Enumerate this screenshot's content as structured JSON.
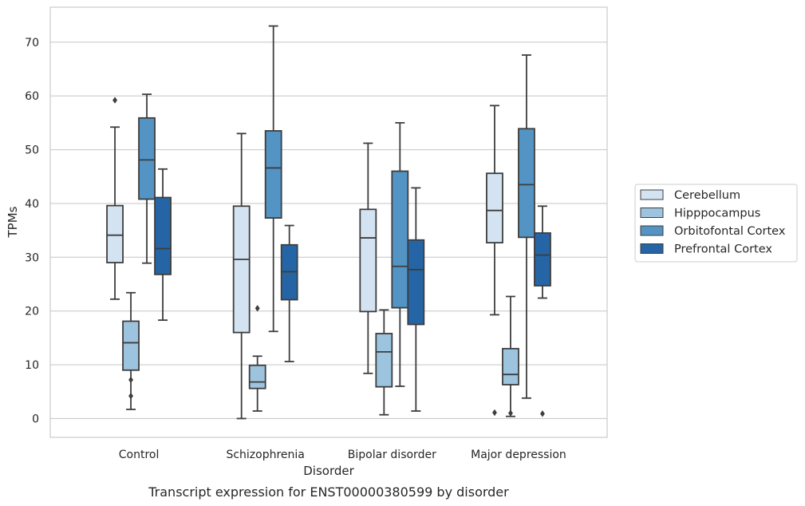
{
  "chart_data": {
    "type": "box",
    "xlabel": "Disorder",
    "ylabel": "TPMs",
    "caption": "Transcript expression for ENST00000380599 by disorder",
    "ylim": [
      -3.5,
      76.5
    ],
    "yticks": [
      0,
      10,
      20,
      30,
      40,
      50,
      60,
      70
    ],
    "grid": "horizontal",
    "legend_position": "right",
    "categories": [
      "Control",
      "Schizophrenia",
      "Bipolar disorder",
      "Major depression"
    ],
    "series": [
      {
        "name": "Cerebellum",
        "color": "#d4e3f2",
        "boxes": [
          {
            "whisker_low": 22.2,
            "q1": 29.0,
            "median": 34.1,
            "q3": 39.6,
            "whisker_high": 54.2,
            "outliers": [
              59.2
            ]
          },
          {
            "whisker_low": 0.0,
            "q1": 16.0,
            "median": 29.6,
            "q3": 39.5,
            "whisker_high": 53.0,
            "outliers": []
          },
          {
            "whisker_low": 8.4,
            "q1": 19.9,
            "median": 33.6,
            "q3": 38.9,
            "whisker_high": 51.2,
            "outliers": []
          },
          {
            "whisker_low": 19.3,
            "q1": 32.7,
            "median": 38.7,
            "q3": 45.6,
            "whisker_high": 58.2,
            "outliers": [
              1.1
            ]
          }
        ]
      },
      {
        "name": "Hipppocampus",
        "color": "#9dc4de",
        "boxes": [
          {
            "whisker_low": 1.7,
            "q1": 9.0,
            "median": 14.1,
            "q3": 18.1,
            "whisker_high": 23.4,
            "outliers": [
              7.2,
              4.2
            ]
          },
          {
            "whisker_low": 1.4,
            "q1": 5.6,
            "median": 6.8,
            "q3": 9.9,
            "whisker_high": 11.6,
            "outliers": [
              20.5
            ]
          },
          {
            "whisker_low": 0.7,
            "q1": 5.9,
            "median": 12.4,
            "q3": 15.8,
            "whisker_high": 20.2,
            "outliers": []
          },
          {
            "whisker_low": 0.4,
            "q1": 6.3,
            "median": 8.2,
            "q3": 13.0,
            "whisker_high": 22.7,
            "outliers": [
              1.0
            ]
          }
        ]
      },
      {
        "name": "Orbitofontal Cortex",
        "color": "#5394c4",
        "boxes": [
          {
            "whisker_low": 28.9,
            "q1": 40.8,
            "median": 48.1,
            "q3": 55.9,
            "whisker_high": 60.3,
            "outliers": []
          },
          {
            "whisker_low": 16.2,
            "q1": 37.3,
            "median": 46.6,
            "q3": 53.5,
            "whisker_high": 73.0,
            "outliers": []
          },
          {
            "whisker_low": 6.0,
            "q1": 20.6,
            "median": 28.3,
            "q3": 46.0,
            "whisker_high": 55.0,
            "outliers": []
          },
          {
            "whisker_low": 3.8,
            "q1": 33.7,
            "median": 43.5,
            "q3": 53.9,
            "whisker_high": 67.6,
            "outliers": []
          }
        ]
      },
      {
        "name": "Prefrontal Cortex",
        "color": "#2565a5",
        "boxes": [
          {
            "whisker_low": 18.3,
            "q1": 26.8,
            "median": 31.6,
            "q3": 41.1,
            "whisker_high": 46.4,
            "outliers": []
          },
          {
            "whisker_low": 10.6,
            "q1": 22.1,
            "median": 27.3,
            "q3": 32.3,
            "whisker_high": 35.9,
            "outliers": []
          },
          {
            "whisker_low": 1.4,
            "q1": 17.5,
            "median": 27.7,
            "q3": 33.2,
            "whisker_high": 42.9,
            "outliers": []
          },
          {
            "whisker_low": 22.4,
            "q1": 24.7,
            "median": 30.4,
            "q3": 34.5,
            "whisker_high": 39.5,
            "outliers": [
              0.9
            ]
          }
        ]
      }
    ]
  }
}
